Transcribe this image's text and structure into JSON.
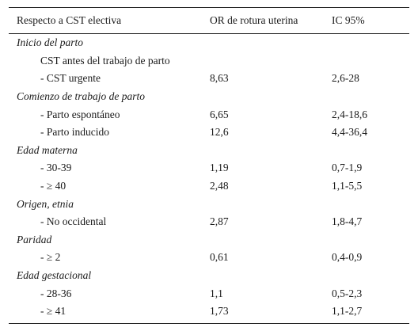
{
  "header": {
    "col1": "Respecto a CST electiva",
    "col2": "OR de rotura uterina",
    "col3": "IC 95%"
  },
  "rows": [
    {
      "type": "group",
      "label": "Inicio del parto"
    },
    {
      "type": "item",
      "label": "CST antes del trabajo de parto",
      "or": "",
      "ic": ""
    },
    {
      "type": "item",
      "label": "- CST urgente",
      "or": "8,63",
      "ic": "2,6-28"
    },
    {
      "type": "group",
      "label": "Comienzo de trabajo de parto"
    },
    {
      "type": "item",
      "label": "- Parto espontáneo",
      "or": "6,65",
      "ic": "2,4-18,6"
    },
    {
      "type": "item",
      "label": "- Parto inducido",
      "or": "12,6",
      "ic": "4,4-36,4"
    },
    {
      "type": "group",
      "label": "Edad materna"
    },
    {
      "type": "item",
      "label": "- 30-39",
      "or": "1,19",
      "ic": "0,7-1,9"
    },
    {
      "type": "item",
      "label": "- ≥ 40",
      "or": "2,48",
      "ic": "1,1-5,5"
    },
    {
      "type": "group",
      "label": "Origen, etnia"
    },
    {
      "type": "item",
      "label": "- No occidental",
      "or": "2,87",
      "ic": "1,8-4,7"
    },
    {
      "type": "group",
      "label": "Paridad"
    },
    {
      "type": "item",
      "label": "- ≥ 2",
      "or": "0,61",
      "ic": "0,4-0,9"
    },
    {
      "type": "group",
      "label": "Edad gestacional"
    },
    {
      "type": "item",
      "label": "- 28-36",
      "or": "1,1",
      "ic": "0,5-2,3"
    },
    {
      "type": "item",
      "label": "- ≥ 41",
      "or": "1,73",
      "ic": "1,1-2,7"
    }
  ]
}
